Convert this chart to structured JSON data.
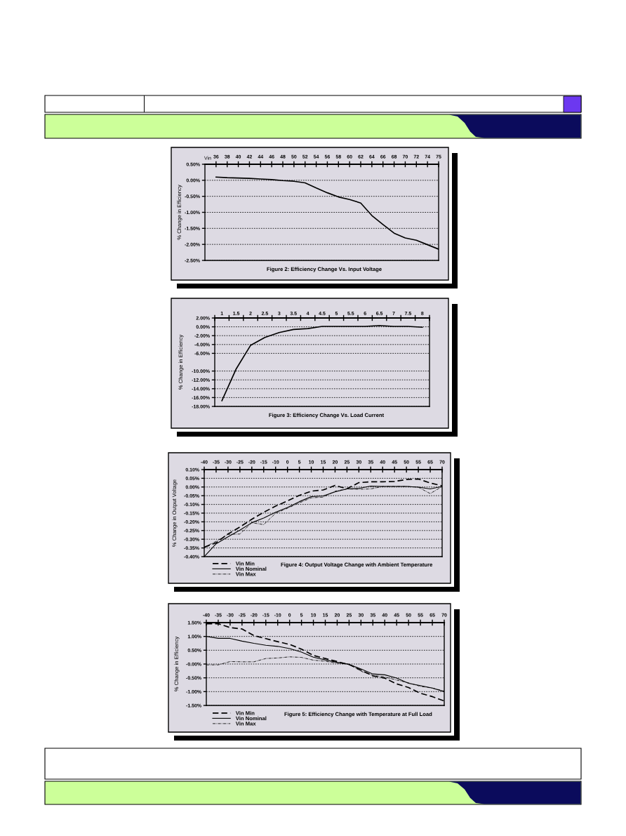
{
  "chart_data": [
    {
      "type": "line",
      "title": "Figure 2: Efficiency Change Vs. Input Voltage",
      "xlabel": "Vin",
      "ylabel": "% Change in Efficiency",
      "categories": [
        "36",
        "38",
        "40",
        "42",
        "44",
        "46",
        "48",
        "50",
        "52",
        "54",
        "56",
        "58",
        "60",
        "62",
        "64",
        "66",
        "68",
        "70",
        "72",
        "74",
        "75"
      ],
      "series": [
        {
          "color": "#000000",
          "values": [
            0.1,
            0.08,
            0.07,
            0.06,
            0.04,
            0.02,
            -0.01,
            -0.03,
            -0.08,
            -0.24,
            -0.39,
            -0.52,
            -0.6,
            -0.71,
            -1.1,
            -1.38,
            -1.65,
            -1.8,
            -1.87,
            -2.01,
            -2.15
          ]
        }
      ],
      "ylim": [
        -2.5,
        0.5
      ],
      "yticks": [
        {
          "value": 0.5,
          "label": "0.50%"
        },
        {
          "value": 0,
          "label": "0.00%"
        },
        {
          "value": -0.5,
          "label": "-0.50%"
        },
        {
          "value": -1,
          "label": "-1.00%"
        },
        {
          "value": -1.5,
          "label": "-1.50%"
        },
        {
          "value": -2,
          "label": "-2.00%"
        },
        {
          "value": -2.5,
          "label": "-2.50%"
        }
      ],
      "grid": "y"
    },
    {
      "type": "line",
      "title": "Figure 3: Efficiency Change Vs. Load Current",
      "ylabel": "% Change in Efficiency",
      "categories": [
        "1",
        "1.5",
        "2",
        "2.5",
        "3",
        "3.5",
        "4",
        "4.5",
        "5",
        "5.5",
        "6",
        "6.5",
        "7",
        "7.5",
        "8"
      ],
      "series": [
        {
          "color": "#000000",
          "values": [
            -16.7,
            -9.5,
            -4.2,
            -2.4,
            -1.3,
            -0.6,
            -0.4,
            0.1,
            0.1,
            0.1,
            0.1,
            0.3,
            0.1,
            0.1,
            -0.1
          ]
        }
      ],
      "ylim": [
        -18,
        2
      ],
      "yticks": [
        {
          "value": 2,
          "label": "2.00%"
        },
        {
          "value": 0,
          "label": "0.00%"
        },
        {
          "value": -2,
          "label": "-2.00%"
        },
        {
          "value": -4,
          "label": "-4.00%"
        },
        {
          "value": -6,
          "label": "-6.00%"
        },
        {
          "value": -10,
          "label": "-10.00%"
        },
        {
          "value": -12,
          "label": "-12.00%"
        },
        {
          "value": -14,
          "label": "-14.00%"
        },
        {
          "value": -16,
          "label": "-16.00%"
        },
        {
          "value": -18,
          "label": "-18.00%"
        }
      ],
      "grid": "y"
    },
    {
      "type": "line",
      "title": "Figure 4: Output Voltage Change with Ambient Temperature",
      "ylabel": "% Change in Output Voltage",
      "categories": [
        "-40",
        "-35",
        "-30",
        "-25",
        "-20",
        "-15",
        "-10",
        "0",
        "5",
        "10",
        "15",
        "20",
        "25",
        "30",
        "35",
        "40",
        "45",
        "50",
        "55",
        "65",
        "70"
      ],
      "series": [
        {
          "name": "Vin Min",
          "color": "#000000",
          "line_style": "dashed",
          "values": [
            -0.346,
            -0.32,
            -0.27,
            -0.23,
            -0.185,
            -0.145,
            -0.11,
            -0.08,
            -0.048,
            -0.024,
            -0.017,
            0.009,
            -0.01,
            0.025,
            0.03,
            0.03,
            0.032,
            0.043,
            0.046,
            0.023,
            0.007
          ]
        },
        {
          "name": "Vin Nominal",
          "color": "#000000",
          "line_style": "solid",
          "values": [
            -0.4,
            -0.326,
            -0.286,
            -0.248,
            -0.205,
            -0.178,
            -0.145,
            -0.118,
            -0.084,
            -0.055,
            -0.051,
            -0.028,
            -0.011,
            -0.008,
            0.005,
            0.003,
            0.003,
            0.003,
            -0.001,
            -0.011,
            0.003
          ]
        },
        {
          "name": "Vin Max",
          "color": "#000000",
          "line_style": "dashdot",
          "values": [
            -0.346,
            -0.312,
            -0.272,
            -0.27,
            -0.205,
            -0.216,
            -0.151,
            -0.122,
            -0.091,
            -0.062,
            -0.058,
            -0.024,
            -0.011,
            -0.013,
            -0.011,
            0.003,
            0.003,
            0.003,
            -0.001,
            -0.038,
            0.003
          ]
        }
      ],
      "ylim": [
        -0.4,
        0.1
      ],
      "yticks": [
        {
          "value": 0.1,
          "label": "0.10%"
        },
        {
          "value": 0.05,
          "label": "0.05%"
        },
        {
          "value": 0,
          "label": "0.00%"
        },
        {
          "value": -0.05,
          "label": "-0.05%"
        },
        {
          "value": -0.1,
          "label": "-0.10%"
        },
        {
          "value": -0.15,
          "label": "-0.15%"
        },
        {
          "value": -0.2,
          "label": "-0.20%"
        },
        {
          "value": -0.25,
          "label": "-0.25%"
        },
        {
          "value": -0.3,
          "label": "-0.30%"
        },
        {
          "value": -0.35,
          "label": "-0.35%"
        },
        {
          "value": -0.4,
          "label": "-0.40%"
        }
      ],
      "grid": "y",
      "legend": "bottom left"
    },
    {
      "type": "line",
      "title": "Figure 5: Efficiency Change with Temperature at Full Load",
      "ylabel": "% Change in Efficiency",
      "categories": [
        "-40",
        "-35",
        "-30",
        "-25",
        "-20",
        "-15",
        "-10",
        "0",
        "5",
        "10",
        "15",
        "20",
        "25",
        "30",
        "35",
        "40",
        "45",
        "50",
        "55",
        "65",
        "70"
      ],
      "series": [
        {
          "name": "Vin Min",
          "color": "#000000",
          "line_style": "dashed",
          "values": [
            1.46,
            1.46,
            1.32,
            1.27,
            1.03,
            0.92,
            0.81,
            0.71,
            0.54,
            0.31,
            0.2,
            0.09,
            -0.02,
            -0.22,
            -0.43,
            -0.51,
            -0.72,
            -0.85,
            -1.06,
            -1.18,
            -1.34
          ]
        },
        {
          "name": "Vin Nominal",
          "color": "#000000",
          "line_style": "solid",
          "values": [
            1.0,
            0.93,
            0.93,
            0.83,
            0.75,
            0.68,
            0.64,
            0.56,
            0.43,
            0.25,
            0.15,
            0.06,
            -0.01,
            -0.18,
            -0.36,
            -0.39,
            -0.51,
            -0.7,
            -0.78,
            -0.87,
            -1.0
          ]
        },
        {
          "name": "Vin Max",
          "color": "#000000",
          "line_style": "dashdot",
          "values": [
            -0.03,
            -0.03,
            0.09,
            0.08,
            0.08,
            0.2,
            0.22,
            0.26,
            0.24,
            0.14,
            0.1,
            0.03,
            -0.01,
            -0.26,
            -0.41,
            -0.47,
            -0.58,
            -0.68,
            -0.81,
            -0.87,
            -0.98
          ]
        }
      ],
      "ylim": [
        -1.5,
        1.5
      ],
      "yticks": [
        {
          "value": 1.5,
          "label": "1.50%"
        },
        {
          "value": 1,
          "label": "1.00%"
        },
        {
          "value": 0.5,
          "label": "0.50%"
        },
        {
          "value": 0,
          "label": "-0.00%"
        },
        {
          "value": -0.5,
          "label": "-0.50%"
        },
        {
          "value": -1,
          "label": "-1.00%"
        },
        {
          "value": -1.5,
          "label": "-1.50%"
        }
      ],
      "grid": "y",
      "legend": "bottom left"
    }
  ]
}
